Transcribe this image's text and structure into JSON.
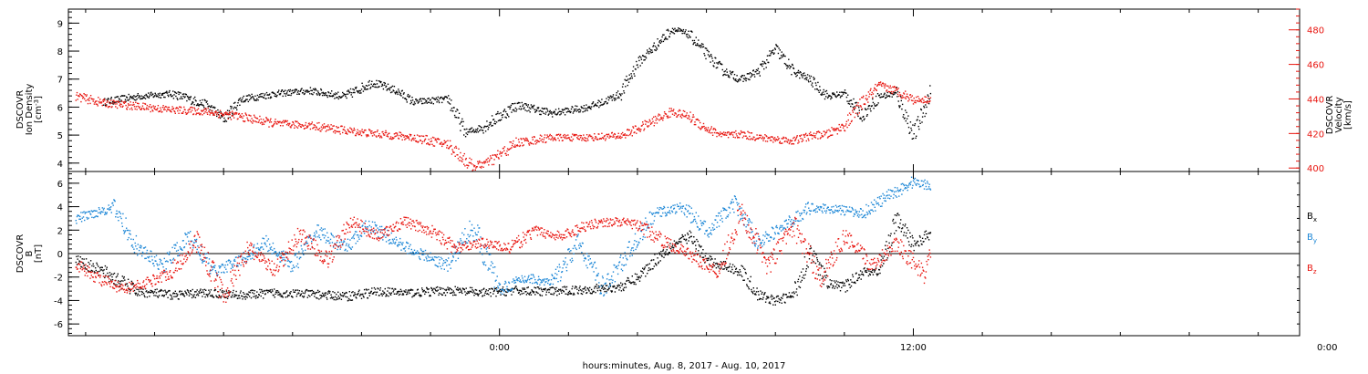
{
  "colors": {
    "black": "#000000",
    "red": "#e8150f",
    "blue": "#1b86d6",
    "axis_right": "#e8150f"
  },
  "xaxis": {
    "label": "hours:minutes, Aug.  8, 2017 - Aug. 10, 2017",
    "range_hours": [
      -12.5,
      23.2
    ],
    "major_ticks": [
      {
        "h": 0,
        "label": "0:00"
      },
      {
        "h": 12,
        "label": "12:00"
      },
      {
        "h": 24,
        "label": "0:00"
      }
    ],
    "minor_step_hours": 2
  },
  "chart_data": [
    {
      "type": "scatter",
      "panel": "top",
      "ylabel": [
        "DSCOVR",
        "Ion Density",
        "[cm",
        "-3",
        "]"
      ],
      "ylim": [
        3.7,
        9.5
      ],
      "yticks": [
        4,
        5,
        6,
        7,
        8,
        9
      ],
      "y2label": [
        "DSCOVR",
        "Velocity",
        "[km/s]"
      ],
      "y2lim": [
        398,
        492
      ],
      "y2ticks": [
        400,
        420,
        440,
        460,
        480
      ],
      "series": [
        {
          "axis": "left",
          "color": "black",
          "x": [
            -11.5,
            -10.5,
            -9.5,
            -8.5,
            -8.0,
            -7.5,
            -6.5,
            -5.5,
            -4.5,
            -3.7,
            -3.0,
            -2.5,
            -1.5,
            -1.0,
            -0.5,
            0.5,
            1.5,
            2.5,
            3.0,
            3.5,
            4.0,
            4.5,
            5.0,
            5.5,
            6.0,
            6.5,
            7.0,
            7.5,
            8.0,
            8.5,
            9.0,
            9.5,
            10.0,
            10.5,
            11.0,
            11.5,
            12.0,
            12.5
          ],
          "y": [
            6.2,
            6.4,
            6.5,
            6.1,
            5.6,
            6.3,
            6.5,
            6.6,
            6.4,
            6.9,
            6.6,
            6.2,
            6.3,
            5.1,
            5.3,
            6.1,
            5.8,
            6.0,
            6.2,
            6.5,
            7.6,
            8.2,
            8.8,
            8.6,
            7.9,
            7.3,
            7.0,
            7.3,
            8.1,
            7.3,
            7.0,
            6.4,
            6.5,
            5.7,
            6.4,
            6.5,
            5.0,
            6.6
          ]
        },
        {
          "axis": "right",
          "color": "red",
          "x": [
            -12.3,
            -11.5,
            -10.5,
            -9.5,
            -8.5,
            -7.5,
            -6.5,
            -5.5,
            -4.5,
            -3.5,
            -2.5,
            -1.5,
            -0.8,
            -0.3,
            0.5,
            1.5,
            2.5,
            3.5,
            4.0,
            4.5,
            5.0,
            5.5,
            6.0,
            6.5,
            7.0,
            7.5,
            8.0,
            8.5,
            9.0,
            9.5,
            10.0,
            10.5,
            11.0,
            11.5,
            12.0,
            12.5
          ],
          "y": [
            442,
            438,
            436,
            434,
            433,
            430,
            426,
            425,
            422,
            420,
            418,
            414,
            401,
            404,
            415,
            418,
            418,
            419,
            423,
            428,
            433,
            430,
            423,
            419,
            420,
            418,
            417,
            416,
            419,
            420,
            425,
            438,
            448,
            445,
            440,
            440
          ]
        }
      ]
    },
    {
      "type": "scatter",
      "panel": "bottom",
      "ylabel": [
        "DSCOVR",
        "B",
        "[nT]"
      ],
      "ylim": [
        -7,
        7
      ],
      "yticks": [
        -6,
        -4,
        -2,
        0,
        2,
        4,
        6
      ],
      "zero_line": true,
      "legend": [
        {
          "name": "B",
          "sub": "x",
          "color": "black"
        },
        {
          "name": "B",
          "sub": "y",
          "color": "blue"
        },
        {
          "name": "B",
          "sub": "z",
          "color": "red"
        }
      ],
      "series": [
        {
          "name": "Bx",
          "color": "black",
          "x": [
            -12.3,
            -11.5,
            -10.5,
            -9.5,
            -8.5,
            -7.5,
            -6.5,
            -5.5,
            -4.5,
            -3.5,
            -2.5,
            -1.5,
            -0.5,
            0.5,
            1.5,
            2.5,
            3.5,
            4.0,
            4.5,
            5.0,
            5.5,
            6.0,
            6.5,
            7.0,
            7.5,
            8.0,
            8.5,
            9.0,
            9.5,
            10.0,
            10.5,
            11.0,
            11.5,
            12.0,
            12.5
          ],
          "y": [
            -0.5,
            -1.5,
            -3.2,
            -3.5,
            -3.3,
            -3.5,
            -3.3,
            -3.4,
            -3.6,
            -3.2,
            -3.3,
            -3.1,
            -3.3,
            -3.1,
            -3.2,
            -3.0,
            -2.8,
            -2.0,
            -0.5,
            0.8,
            1.5,
            -0.5,
            -1.0,
            -1.5,
            -3.5,
            -4.0,
            -3.5,
            0.2,
            -2.5,
            -2.8,
            -1.5,
            -1.5,
            3.0,
            0.8,
            1.8
          ]
        },
        {
          "name": "By",
          "color": "blue",
          "x": [
            -12.3,
            -11.8,
            -11.2,
            -10.5,
            -9.8,
            -9.0,
            -8.3,
            -7.5,
            -6.8,
            -6.0,
            -5.3,
            -4.5,
            -3.8,
            -3.0,
            -2.3,
            -1.5,
            -0.8,
            0.0,
            0.8,
            1.5,
            2.3,
            3.0,
            3.8,
            4.5,
            5.3,
            6.0,
            6.8,
            7.5,
            8.3,
            9.0,
            9.8,
            10.5,
            11.3,
            12.0,
            12.5
          ],
          "y": [
            3.0,
            3.5,
            4.0,
            0.5,
            -1.0,
            1.5,
            -1.5,
            -0.5,
            1.0,
            -1.0,
            2.0,
            0.5,
            2.5,
            1.0,
            0.0,
            -1.0,
            2.5,
            -3.0,
            -2.0,
            -2.5,
            1.0,
            -3.0,
            0.5,
            3.5,
            4.0,
            2.0,
            4.2,
            1.0,
            2.5,
            4.0,
            3.8,
            3.5,
            5.0,
            6.2,
            5.8
          ]
        },
        {
          "name": "Bz",
          "color": "red",
          "x": [
            -12.3,
            -11.8,
            -11.0,
            -10.3,
            -9.5,
            -8.8,
            -8.0,
            -7.3,
            -6.5,
            -5.8,
            -5.0,
            -4.3,
            -3.5,
            -2.8,
            -2.0,
            -1.3,
            -0.5,
            0.3,
            1.0,
            1.8,
            2.5,
            3.3,
            4.0,
            4.8,
            5.5,
            6.3,
            7.0,
            7.8,
            8.5,
            9.3,
            10.0,
            10.8,
            11.5,
            12.3,
            12.5
          ],
          "y": [
            -0.8,
            -1.8,
            -3.0,
            -2.5,
            -1.5,
            1.2,
            -3.5,
            0.5,
            -1.5,
            1.8,
            -0.5,
            2.8,
            1.5,
            2.8,
            2.0,
            0.5,
            1.0,
            0.5,
            2.0,
            1.5,
            2.5,
            2.8,
            2.5,
            1.0,
            0.0,
            -1.5,
            3.5,
            -1.0,
            2.5,
            -2.0,
            1.5,
            -1.0,
            1.0,
            -1.8,
            0.5
          ]
        }
      ]
    }
  ]
}
